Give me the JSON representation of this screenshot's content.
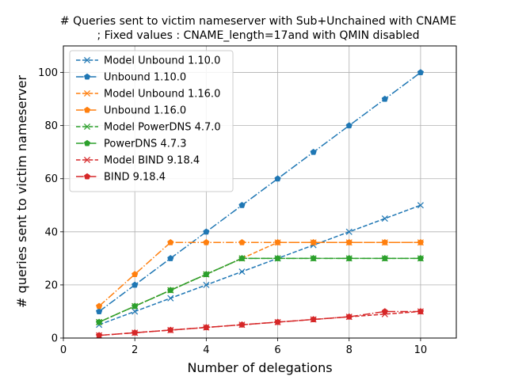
{
  "chart_data": {
    "type": "line",
    "title_lines": [
      "# Queries sent to victim nameserver with Sub+Unchained with CNAME",
      "; Fixed values : CNAME_length=17and  with QMIN disabled"
    ],
    "xlabel": "Number of delegations",
    "ylabel": "# queries sent to victim nameserver",
    "xlim": [
      0,
      11
    ],
    "ylim": [
      0,
      110
    ],
    "xticks": [
      0,
      2,
      4,
      6,
      8,
      10
    ],
    "yticks": [
      0,
      20,
      40,
      60,
      80,
      100
    ],
    "grid": true,
    "legend_position": "top-left",
    "x": [
      1,
      2,
      3,
      4,
      5,
      6,
      7,
      8,
      9,
      10
    ],
    "series": [
      {
        "name": "Model Unbound 1.10.0",
        "color": "#1f77b4",
        "marker": "x",
        "dash": "dashed",
        "values": [
          5,
          10,
          15,
          20,
          25,
          30,
          35,
          40,
          45,
          50
        ]
      },
      {
        "name": "Unbound 1.10.0",
        "color": "#1f77b4",
        "marker": "pentagon",
        "dash": "dashdot",
        "values": [
          10,
          20,
          30,
          40,
          50,
          60,
          70,
          80,
          90,
          100
        ]
      },
      {
        "name": "Model Unbound 1.16.0",
        "color": "#ff7f0e",
        "marker": "x",
        "dash": "dashed",
        "values": [
          6,
          12,
          18,
          24,
          30,
          36,
          36,
          36,
          36,
          36
        ]
      },
      {
        "name": "Unbound 1.16.0",
        "color": "#ff7f0e",
        "marker": "pentagon",
        "dash": "dashdot",
        "values": [
          12,
          24,
          36,
          36,
          36,
          36,
          36,
          36,
          36,
          36
        ]
      },
      {
        "name": "Model PowerDNS 4.7.0",
        "color": "#2ca02c",
        "marker": "x",
        "dash": "dashed",
        "values": [
          6,
          12,
          18,
          24,
          30,
          30,
          30,
          30,
          30,
          30
        ]
      },
      {
        "name": "PowerDNS 4.7.3",
        "color": "#2ca02c",
        "marker": "pentagon",
        "dash": "dashdot",
        "values": [
          6,
          12,
          18,
          24,
          30,
          30,
          30,
          30,
          30,
          30
        ]
      },
      {
        "name": "Model BIND 9.18.4",
        "color": "#d62728",
        "marker": "x",
        "dash": "dashed",
        "values": [
          1,
          2,
          3,
          4,
          5,
          6,
          7,
          8,
          9,
          10
        ]
      },
      {
        "name": "BIND 9.18.4",
        "color": "#d62728",
        "marker": "pentagon",
        "dash": "dashdot",
        "values": [
          1,
          2,
          3,
          4,
          5,
          6,
          7,
          8,
          10,
          10
        ]
      }
    ]
  }
}
